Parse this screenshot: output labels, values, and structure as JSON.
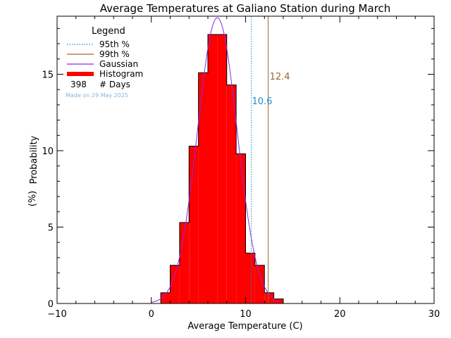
{
  "chart_data": {
    "type": "bar",
    "title": "Average Temperatures at Galiano Station during March",
    "xlabel": "Average Temperature (C)",
    "ylabel_line1": "Probability",
    "ylabel_line2": "(%)",
    "xlim": [
      -10,
      30
    ],
    "ylim": [
      0,
      18.8
    ],
    "xticks": [
      -10,
      0,
      10,
      20,
      30
    ],
    "xtick_labels": [
      "−10",
      "0",
      "10",
      "20",
      "30"
    ],
    "yticks": [
      0,
      5,
      10,
      15
    ],
    "ytick_labels": [
      "0",
      "5",
      "10",
      "15"
    ],
    "bin_width": 1,
    "histogram": {
      "bins": [
        1,
        2,
        3,
        4,
        5,
        6,
        7,
        8,
        9,
        10,
        11,
        12,
        13
      ],
      "values": [
        0.7,
        2.5,
        5.3,
        10.3,
        15.1,
        17.6,
        17.6,
        14.3,
        9.8,
        3.3,
        2.5,
        0.7,
        0.3
      ]
    },
    "gaussian": {
      "mean": 7.0,
      "sigma": 2.1,
      "peak": 18.7,
      "range": [
        0,
        13.5
      ]
    },
    "percentiles": {
      "p95": 10.6,
      "p99": 12.4
    },
    "percentile_labels": {
      "p95": "10.6",
      "p99": "12.4"
    },
    "legend": {
      "title": "Legend",
      "items": [
        {
          "label": "95th %",
          "style": "dotted",
          "color": "#1e90c8"
        },
        {
          "label": "99th %",
          "style": "solid",
          "color": "#a0642d"
        },
        {
          "label": "Gaussian",
          "style": "solid",
          "color": "#8a2be2"
        },
        {
          "label": "Histogram",
          "style": "thick",
          "color": "#ff0000"
        }
      ],
      "days_count": "398",
      "days_label": "# Days",
      "made_on": "Made on 29 May 2025"
    },
    "colors": {
      "histogram_fill": "#ff0000",
      "histogram_edge": "#000000",
      "gaussian": "#8a2be2",
      "p95": "#1e90c8",
      "p99": "#a0642d",
      "made_on": "#87b5d6"
    }
  }
}
